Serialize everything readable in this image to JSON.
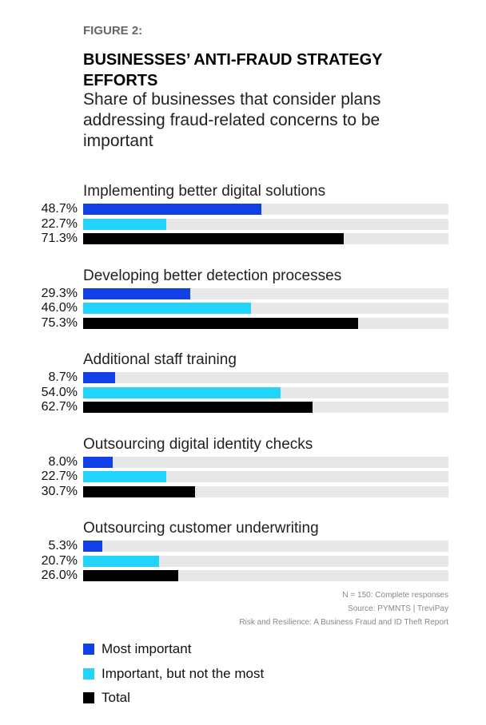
{
  "chart_data": {
    "type": "bar",
    "orientation": "horizontal",
    "figure_label": "FIGURE 2:",
    "title": "BUSINESSES’ ANTI-FRAUD STRATEGY EFFORTS",
    "subtitle": "Share of businesses that consider plans addressing fraud-related concerns to be important",
    "xlim": [
      0,
      100
    ],
    "categories": [
      "Implementing better digital solutions",
      "Developing better detection processes",
      "Additional staff training",
      "Outsourcing digital identity checks",
      "Outsourcing customer underwriting"
    ],
    "series": [
      {
        "name": "Most important",
        "color": "#1140e6",
        "values": [
          48.7,
          29.3,
          8.7,
          8.0,
          5.3
        ]
      },
      {
        "name": "Important, but not the most",
        "color": "#22d3fb",
        "values": [
          22.7,
          46.0,
          54.0,
          22.7,
          20.7
        ]
      },
      {
        "name": "Total",
        "color": "#000000",
        "values": [
          71.3,
          75.3,
          62.7,
          30.7,
          26.0
        ]
      }
    ],
    "track_color": "#e6e7e9",
    "legend_placement": "bottom-left",
    "notes": [
      "N = 150: Complete responses",
      "Source: PYMNTS  |  TreviPay",
      "Risk and Resilience: A Business Fraud and ID Theft Report"
    ]
  }
}
